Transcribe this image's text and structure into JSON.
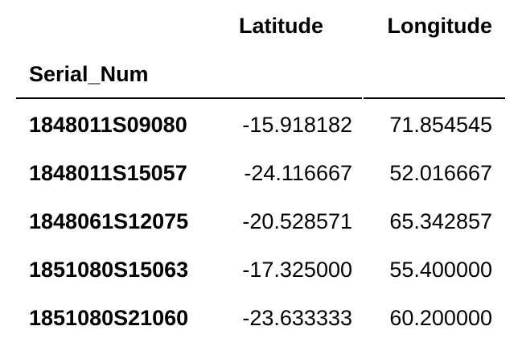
{
  "table": {
    "columns": [
      "Latitude",
      "Longitude"
    ],
    "index_name": "Serial_Num",
    "rows": [
      {
        "serial": "1848011S09080",
        "latitude": "-15.918182",
        "longitude": "71.854545"
      },
      {
        "serial": "1848011S15057",
        "latitude": "-24.116667",
        "longitude": "52.016667"
      },
      {
        "serial": "1848061S12075",
        "latitude": "-20.528571",
        "longitude": "65.342857"
      },
      {
        "serial": "1851080S15063",
        "latitude": "-17.325000",
        "longitude": "55.400000"
      },
      {
        "serial": "1851080S21060",
        "latitude": "-23.633333",
        "longitude": "60.200000"
      }
    ]
  }
}
